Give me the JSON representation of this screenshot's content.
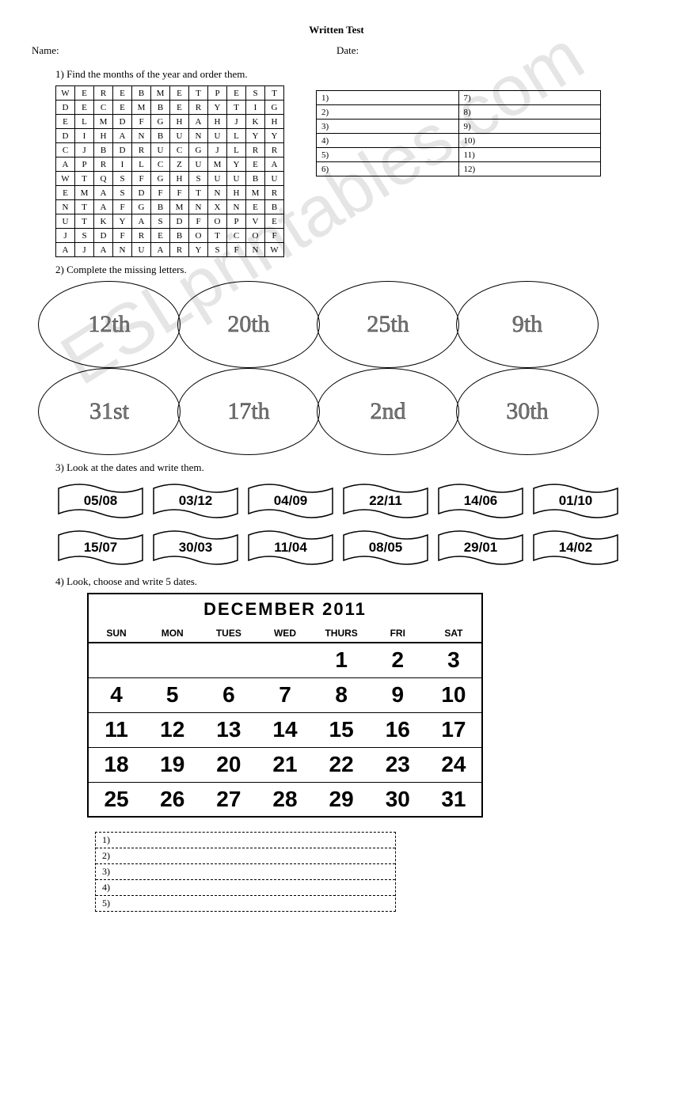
{
  "title": "Written Test",
  "labels": {
    "name": "Name:",
    "date": "Date:"
  },
  "watermark": "ESLprintables.com",
  "q1": {
    "text": "1)   Find the months of the year and order them.",
    "grid": [
      [
        "W",
        "E",
        "R",
        "E",
        "B",
        "M",
        "E",
        "T",
        "P",
        "E",
        "S",
        "T"
      ],
      [
        "D",
        "E",
        "C",
        "E",
        "M",
        "B",
        "E",
        "R",
        "Y",
        "T",
        "I",
        "G"
      ],
      [
        "E",
        "L",
        "M",
        "D",
        "F",
        "G",
        "H",
        "A",
        "H",
        "J",
        "K",
        "H"
      ],
      [
        "D",
        "I",
        "H",
        "A",
        "N",
        "B",
        "U",
        "N",
        "U",
        "L",
        "Y",
        "Y"
      ],
      [
        "C",
        "J",
        "B",
        "D",
        "R",
        "U",
        "C",
        "G",
        "J",
        "L",
        "R",
        "R"
      ],
      [
        "A",
        "P",
        "R",
        "I",
        "L",
        "C",
        "Z",
        "U",
        "M",
        "Y",
        "E",
        "A"
      ],
      [
        "W",
        "T",
        "Q",
        "S",
        "F",
        "G",
        "H",
        "S",
        "U",
        "U",
        "B",
        "U"
      ],
      [
        "E",
        "M",
        "A",
        "S",
        "D",
        "F",
        "F",
        "T",
        "N",
        "H",
        "M",
        "R"
      ],
      [
        "N",
        "T",
        "A",
        "F",
        "G",
        "B",
        "M",
        "N",
        "X",
        "N",
        "E",
        "B"
      ],
      [
        "U",
        "T",
        "K",
        "Y",
        "A",
        "S",
        "D",
        "F",
        "O",
        "P",
        "V",
        "E"
      ],
      [
        "J",
        "S",
        "D",
        "F",
        "R",
        "E",
        "B",
        "O",
        "T",
        "C",
        "O",
        "F"
      ],
      [
        "A",
        "J",
        "A",
        "N",
        "U",
        "A",
        "R",
        "Y",
        "S",
        "F",
        "N",
        "W"
      ]
    ],
    "answers_left": [
      "1)",
      "2)",
      "3)",
      "4)",
      "5)",
      "6)"
    ],
    "answers_right": [
      "7)",
      "8)",
      "9)",
      "10)",
      "11)",
      "12)"
    ]
  },
  "q2": {
    "text": "2)   Complete the missing letters.",
    "row1": [
      "12th",
      "20th",
      "25th",
      "9th"
    ],
    "row2": [
      "31st",
      "17th",
      "2nd",
      "30th"
    ]
  },
  "q3": {
    "text": "3)   Look at the dates  and write them.",
    "row1": [
      "05/08",
      "03/12",
      "04/09",
      "22/11",
      "14/06",
      "01/10"
    ],
    "row2": [
      "15/07",
      "30/03",
      "11/04",
      "08/05",
      "29/01",
      "14/02"
    ]
  },
  "q4": {
    "text": "4)   Look, choose and write 5 dates.",
    "month": "DECEMBER  2011",
    "dow": [
      "SUN",
      "MON",
      "TUES",
      "WED",
      "THURS",
      "FRI",
      "SAT"
    ],
    "weeks": [
      [
        "",
        "",
        "",
        "",
        "1",
        "2",
        "3"
      ],
      [
        "4",
        "5",
        "6",
        "7",
        "8",
        "9",
        "10"
      ],
      [
        "11",
        "12",
        "13",
        "14",
        "15",
        "16",
        "17"
      ],
      [
        "18",
        "19",
        "20",
        "21",
        "22",
        "23",
        "24"
      ],
      [
        "25",
        "26",
        "27",
        "28",
        "29",
        "30",
        "31"
      ]
    ],
    "lines": [
      "1)",
      "2)",
      "3)",
      "4)",
      "5)"
    ]
  }
}
